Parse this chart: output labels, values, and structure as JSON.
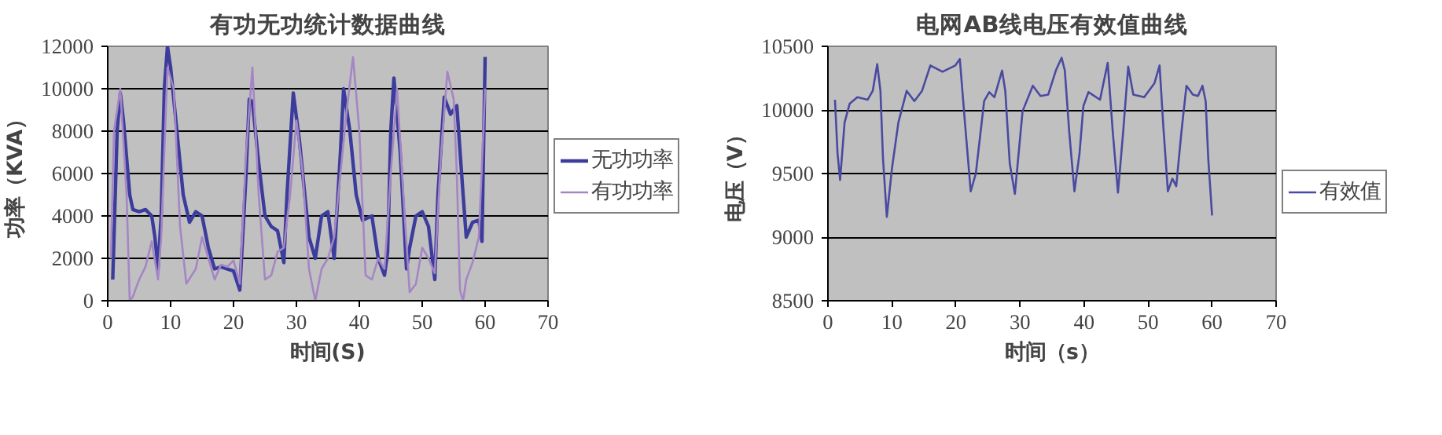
{
  "chart_data": [
    {
      "type": "line",
      "title": "有功无功统计数据曲线",
      "xlabel": "时间(S)",
      "ylabel": "功率（KVA）",
      "xlim": [
        0,
        70
      ],
      "xticks": [
        0,
        10,
        20,
        30,
        40,
        50,
        60,
        70
      ],
      "ylim": [
        0,
        12000
      ],
      "yticks": [
        0,
        2000,
        4000,
        6000,
        8000,
        10000,
        12000
      ],
      "grid": "y",
      "legend": "right",
      "marker": "none",
      "line_style": "solid",
      "series": [
        {
          "name": "无功功率",
          "color": "#3c3c9c",
          "x": [
            0.8,
            1.5,
            2,
            2.5,
            3.5,
            4,
            5,
            6,
            7,
            7.5,
            8,
            8.5,
            9,
            9.5,
            10,
            11,
            12,
            13,
            14,
            15,
            16,
            17,
            18,
            20,
            21,
            22,
            22.5,
            23,
            24,
            25,
            26,
            27,
            28,
            28.5,
            29.5,
            30.5,
            32,
            33,
            34,
            35,
            36,
            37,
            37.5,
            38.5,
            39.5,
            40.5,
            42,
            43,
            44,
            44.5,
            45,
            45.5,
            46.5,
            47.5,
            48,
            49,
            50,
            51,
            52,
            52.5,
            53.5,
            54.5,
            55.5,
            56.5,
            57,
            58,
            59,
            59.5,
            60
          ],
          "values": [
            1000,
            8000,
            9800,
            8500,
            5000,
            4300,
            4200,
            4300,
            4000,
            3000,
            1500,
            4000,
            10000,
            12000,
            11000,
            8000,
            5000,
            3700,
            4200,
            4000,
            2500,
            1500,
            1600,
            1400,
            500,
            6000,
            9500,
            9400,
            6500,
            4000,
            3500,
            3300,
            1800,
            5000,
            9800,
            7500,
            3000,
            2000,
            4000,
            4200,
            2000,
            7000,
            10000,
            8000,
            5000,
            3800,
            4000,
            2000,
            1200,
            2300,
            8000,
            10500,
            7000,
            1500,
            2500,
            4000,
            4200,
            3500,
            1000,
            5000,
            9600,
            8800,
            9200,
            5000,
            3000,
            3700,
            3800,
            2800,
            11500
          ]
        },
        {
          "name": "有功功率",
          "color": "#a486c4",
          "x": [
            0.5,
            1,
            2,
            3,
            3.5,
            4,
            5,
            6,
            7,
            8,
            8.5,
            9.5,
            10.5,
            11.5,
            12.5,
            14,
            15,
            16,
            17,
            18,
            19,
            20,
            21,
            22,
            23,
            24,
            25,
            26,
            27,
            28,
            29,
            30,
            31,
            32,
            33,
            34,
            35,
            36,
            37,
            38,
            39,
            40,
            41,
            42,
            43,
            44,
            45,
            46,
            47,
            48,
            49,
            50,
            51,
            52,
            53,
            54,
            55,
            55.5,
            56,
            56.5,
            57,
            58,
            59,
            60
          ],
          "values": [
            2000,
            8000,
            10000,
            5000,
            0,
            200,
            1000,
            1600,
            2800,
            1000,
            3000,
            11000,
            10000,
            3500,
            800,
            1500,
            3000,
            2000,
            1000,
            1700,
            1600,
            1900,
            800,
            7000,
            11000,
            5000,
            1000,
            1200,
            2300,
            2500,
            5000,
            8500,
            6000,
            1500,
            0,
            1500,
            2000,
            3000,
            6000,
            9000,
            11500,
            8000,
            1200,
            1000,
            2000,
            1500,
            6000,
            10000,
            5000,
            400,
            800,
            2500,
            2000,
            1300,
            7000,
            10800,
            9500,
            6000,
            500,
            0,
            1000,
            1800,
            3000,
            10000
          ]
        }
      ]
    },
    {
      "type": "line",
      "title": "电网AB线电压有效值曲线",
      "xlabel": "时间（s）",
      "ylabel": "电压（V）",
      "xlim": [
        0,
        70
      ],
      "xticks": [
        0,
        10,
        20,
        30,
        40,
        50,
        60,
        70
      ],
      "ylim": [
        8500,
        10500
      ],
      "yticks": [
        8500,
        9000,
        9500,
        10000,
        10500
      ],
      "grid": "y",
      "legend": "right",
      "marker": "none",
      "line_style": "solid",
      "series": [
        {
          "name": "有效值",
          "color": "#4a4aa0",
          "x": [
            1.1,
            1.5,
            1.9,
            2.6,
            3.4,
            4.6,
            6.2,
            7,
            7.7,
            8.2,
            8.6,
            9.2,
            10,
            11,
            12.3,
            13.5,
            14.7,
            16,
            17.9,
            19.9,
            20.6,
            21.4,
            22.3,
            23.1,
            24.4,
            25.2,
            26,
            27.2,
            27.7,
            28.4,
            29.2,
            30.4,
            32,
            33.2,
            34.4,
            35.6,
            36.5,
            37,
            37.7,
            38.5,
            39.3,
            39.9,
            40.7,
            42.5,
            43.7,
            44.5,
            45.3,
            46.1,
            46.9,
            47.7,
            49.4,
            51,
            51.8,
            52.4,
            53.1,
            53.8,
            54.4,
            55.2,
            56,
            57,
            57.8,
            58.5,
            59,
            59.4,
            60
          ],
          "values": [
            10080,
            9660,
            9450,
            9900,
            10050,
            10100,
            10080,
            10150,
            10360,
            10150,
            9620,
            9160,
            9540,
            9900,
            10150,
            10070,
            10150,
            10350,
            10300,
            10350,
            10400,
            9900,
            9360,
            9500,
            10070,
            10140,
            10100,
            10310,
            10150,
            9580,
            9340,
            9990,
            10190,
            10110,
            10120,
            10310,
            10410,
            10310,
            9820,
            9360,
            9660,
            10030,
            10140,
            10080,
            10370,
            9820,
            9350,
            9820,
            10340,
            10120,
            10100,
            10210,
            10350,
            9860,
            9360,
            9460,
            9400,
            9820,
            10190,
            10120,
            10110,
            10190,
            10070,
            9620,
            9170
          ]
        }
      ]
    }
  ]
}
